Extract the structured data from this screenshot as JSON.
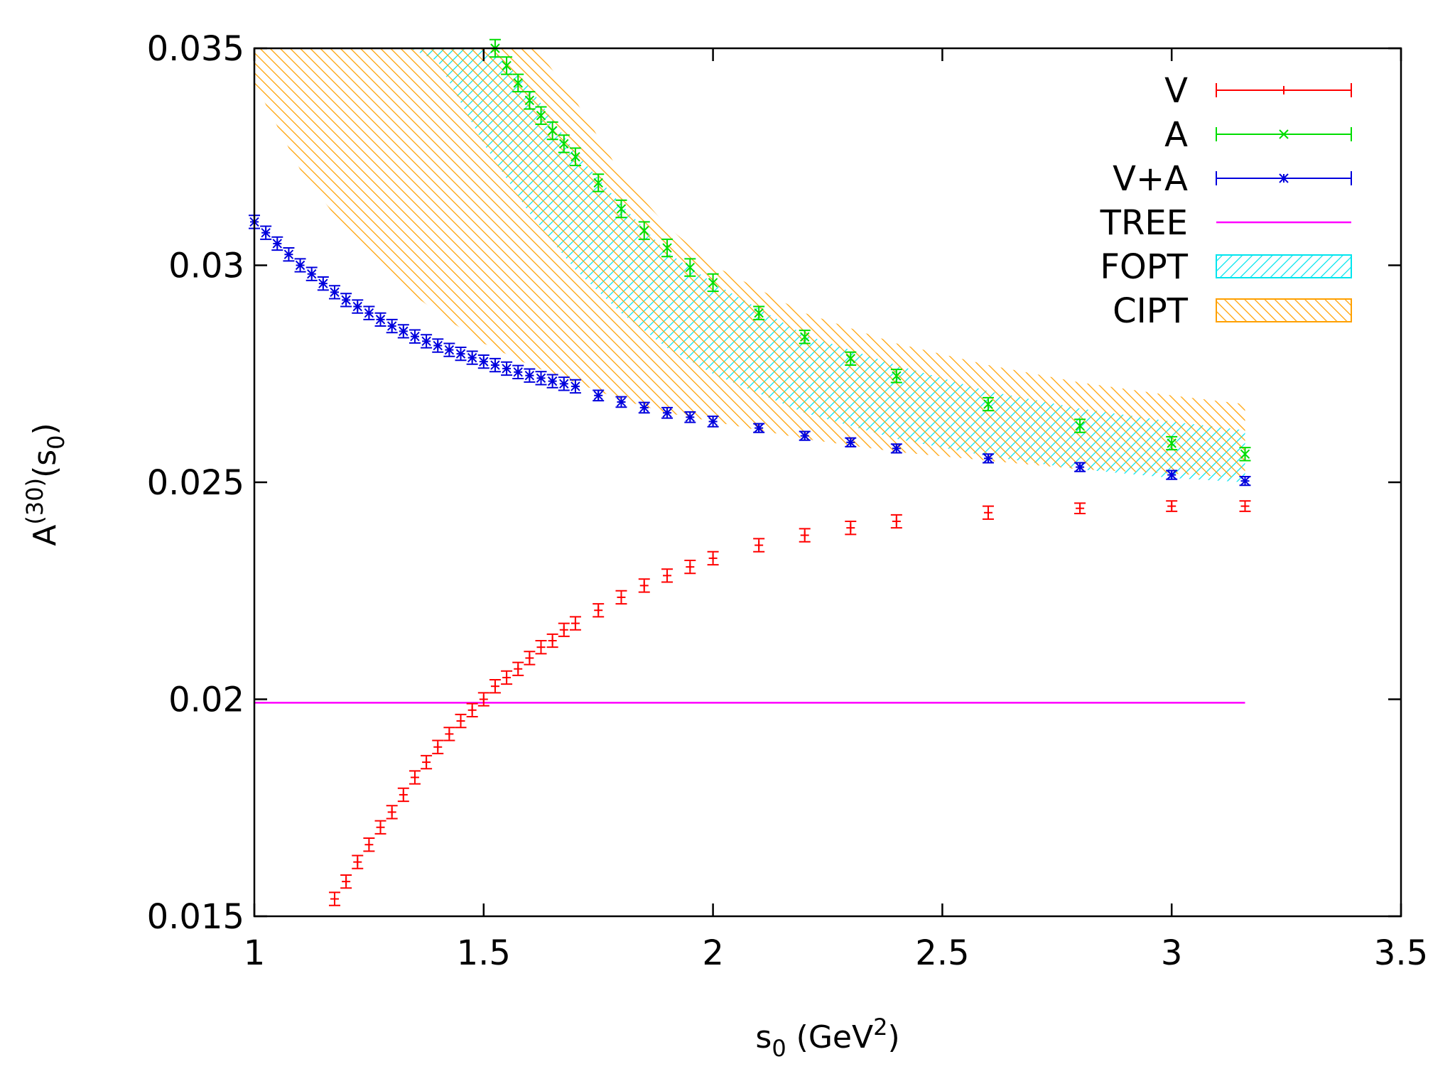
{
  "chart_data": {
    "type": "scatter",
    "xlabel": {
      "base": "s",
      "sub": "0",
      "mid": " (GeV",
      "sup": "2",
      "tail": ")"
    },
    "ylabel": {
      "base": "A",
      "sup": "(30)",
      "mid": "(s",
      "sub": "0",
      "tail": ")"
    },
    "xlim": [
      1,
      3.5
    ],
    "ylim": [
      0.015,
      0.035
    ],
    "xticks": [
      {
        "value": 1,
        "label": "1"
      },
      {
        "value": 1.5,
        "label": "1.5"
      },
      {
        "value": 2,
        "label": "2"
      },
      {
        "value": 2.5,
        "label": "2.5"
      },
      {
        "value": 3,
        "label": "3"
      },
      {
        "value": 3.5,
        "label": "3.5"
      }
    ],
    "yticks": [
      {
        "value": 0.015,
        "label": "0.015"
      },
      {
        "value": 0.02,
        "label": "0.02"
      },
      {
        "value": 0.025,
        "label": "0.025"
      },
      {
        "value": 0.03,
        "label": "0.03"
      },
      {
        "value": 0.035,
        "label": "0.035"
      }
    ],
    "legend_position": "top-right",
    "series": [
      {
        "name": "V",
        "color": "#ff0000",
        "marker": "plus",
        "points": [
          [
            1.175,
            0.0154,
            0.00015
          ],
          [
            1.2,
            0.0158,
            0.00015
          ],
          [
            1.225,
            0.01625,
            0.00015
          ],
          [
            1.25,
            0.01665,
            0.00015
          ],
          [
            1.275,
            0.01705,
            0.00015
          ],
          [
            1.3,
            0.0174,
            0.00015
          ],
          [
            1.325,
            0.0178,
            0.00015
          ],
          [
            1.35,
            0.0182,
            0.00015
          ],
          [
            1.375,
            0.01855,
            0.00015
          ],
          [
            1.4,
            0.0189,
            0.00015
          ],
          [
            1.425,
            0.0192,
            0.00015
          ],
          [
            1.45,
            0.0195,
            0.00015
          ],
          [
            1.475,
            0.01975,
            0.00015
          ],
          [
            1.5,
            0.02,
            0.00015
          ],
          [
            1.525,
            0.0203,
            0.00015
          ],
          [
            1.55,
            0.0205,
            0.00015
          ],
          [
            1.575,
            0.0207,
            0.00015
          ],
          [
            1.6,
            0.02095,
            0.00015
          ],
          [
            1.625,
            0.0212,
            0.00015
          ],
          [
            1.65,
            0.02135,
            0.00015
          ],
          [
            1.675,
            0.0216,
            0.00015
          ],
          [
            1.7,
            0.02175,
            0.00015
          ],
          [
            1.75,
            0.02205,
            0.00015
          ],
          [
            1.8,
            0.02235,
            0.00015
          ],
          [
            1.85,
            0.02262,
            0.00015
          ],
          [
            1.9,
            0.02285,
            0.00015
          ],
          [
            1.95,
            0.02305,
            0.00015
          ],
          [
            2.0,
            0.02325,
            0.00015
          ],
          [
            2.1,
            0.02355,
            0.00015
          ],
          [
            2.2,
            0.02378,
            0.00015
          ],
          [
            2.3,
            0.02395,
            0.00015
          ],
          [
            2.4,
            0.0241,
            0.00015
          ],
          [
            2.6,
            0.0243,
            0.00015
          ],
          [
            2.8,
            0.0244,
            0.00012
          ],
          [
            3.0,
            0.02445,
            0.00012
          ],
          [
            3.16,
            0.02445,
            0.00012
          ]
        ]
      },
      {
        "name": "A",
        "color": "#00dd00",
        "marker": "x",
        "points": [
          [
            1.525,
            0.035,
            0.0002
          ],
          [
            1.55,
            0.0346,
            0.0002
          ],
          [
            1.575,
            0.0342,
            0.0002
          ],
          [
            1.6,
            0.0338,
            0.0002
          ],
          [
            1.625,
            0.03345,
            0.0002
          ],
          [
            1.65,
            0.0331,
            0.0002
          ],
          [
            1.675,
            0.0328,
            0.0002
          ],
          [
            1.7,
            0.0325,
            0.0002
          ],
          [
            1.75,
            0.0319,
            0.0002
          ],
          [
            1.8,
            0.0313,
            0.0002
          ],
          [
            1.85,
            0.0308,
            0.0002
          ],
          [
            1.9,
            0.0304,
            0.0002
          ],
          [
            1.95,
            0.02995,
            0.0002
          ],
          [
            2.0,
            0.0296,
            0.0002
          ],
          [
            2.1,
            0.0289,
            0.00015
          ],
          [
            2.2,
            0.02835,
            0.00015
          ],
          [
            2.3,
            0.02785,
            0.00015
          ],
          [
            2.4,
            0.02745,
            0.00015
          ],
          [
            2.6,
            0.0268,
            0.00015
          ],
          [
            2.8,
            0.0263,
            0.00015
          ],
          [
            3.0,
            0.0259,
            0.00015
          ],
          [
            3.16,
            0.02565,
            0.00015
          ]
        ]
      },
      {
        "name": "V+A",
        "color": "#0000dd",
        "marker": "star",
        "points": [
          [
            1.0,
            0.031,
            0.00015
          ],
          [
            1.025,
            0.03075,
            0.00015
          ],
          [
            1.05,
            0.0305,
            0.00015
          ],
          [
            1.075,
            0.03025,
            0.00015
          ],
          [
            1.1,
            0.03,
            0.00015
          ],
          [
            1.125,
            0.0298,
            0.00015
          ],
          [
            1.15,
            0.02958,
            0.00015
          ],
          [
            1.175,
            0.02938,
            0.00015
          ],
          [
            1.2,
            0.0292,
            0.00015
          ],
          [
            1.225,
            0.02905,
            0.00015
          ],
          [
            1.25,
            0.0289,
            0.00015
          ],
          [
            1.275,
            0.02875,
            0.00015
          ],
          [
            1.3,
            0.0286,
            0.00015
          ],
          [
            1.325,
            0.02848,
            0.00015
          ],
          [
            1.35,
            0.02836,
            0.00015
          ],
          [
            1.375,
            0.02825,
            0.00015
          ],
          [
            1.4,
            0.02815,
            0.00015
          ],
          [
            1.425,
            0.02805,
            0.00015
          ],
          [
            1.45,
            0.02796,
            0.00015
          ],
          [
            1.475,
            0.02787,
            0.00015
          ],
          [
            1.5,
            0.02778,
            0.00015
          ],
          [
            1.525,
            0.0277,
            0.00015
          ],
          [
            1.55,
            0.02762,
            0.00015
          ],
          [
            1.575,
            0.02754,
            0.00015
          ],
          [
            1.6,
            0.02746,
            0.00015
          ],
          [
            1.625,
            0.0274,
            0.00015
          ],
          [
            1.65,
            0.02733,
            0.00015
          ],
          [
            1.675,
            0.02727,
            0.00015
          ],
          [
            1.7,
            0.02721,
            0.00015
          ],
          [
            1.75,
            0.027,
            0.00012
          ],
          [
            1.8,
            0.02685,
            0.00012
          ],
          [
            1.85,
            0.02672,
            0.00012
          ],
          [
            1.9,
            0.0266,
            0.00012
          ],
          [
            1.95,
            0.0265,
            0.00012
          ],
          [
            2.0,
            0.0264,
            0.00012
          ],
          [
            2.1,
            0.02625,
            0.0001
          ],
          [
            2.2,
            0.02607,
            0.0001
          ],
          [
            2.3,
            0.02592,
            0.0001
          ],
          [
            2.4,
            0.02578,
            0.0001
          ],
          [
            2.6,
            0.02555,
            0.0001
          ],
          [
            2.8,
            0.02535,
            0.0001
          ],
          [
            3.0,
            0.02517,
            0.0001
          ],
          [
            3.16,
            0.02503,
            0.0001
          ]
        ]
      }
    ],
    "lines": [
      {
        "name": "TREE",
        "color": "#ff00ff",
        "x": [
          1.0,
          3.16
        ],
        "y": [
          0.01992,
          0.01992
        ]
      }
    ],
    "bands": [
      {
        "name": "FOPT",
        "color": "#00e5ee",
        "pattern": "hatch",
        "x": [
          1.0,
          1.1,
          1.2,
          1.3,
          1.4,
          1.5,
          1.6,
          1.7,
          1.8,
          1.9,
          2.0,
          2.2,
          2.4,
          2.6,
          2.8,
          3.0,
          3.16
        ],
        "upper": [
          0.0352,
          0.0352,
          0.0352,
          0.0352,
          0.0352,
          0.0352,
          0.0341,
          0.0326,
          0.0314,
          0.0303,
          0.0296,
          0.0284,
          0.0277,
          0.0271,
          0.0267,
          0.0264,
          0.0262
        ],
        "lower": [
          0.0352,
          0.0352,
          0.0352,
          0.0352,
          0.0347,
          0.0328,
          0.0312,
          0.0299,
          0.0289,
          0.0281,
          0.0275,
          0.0266,
          0.026,
          0.0256,
          0.0253,
          0.0251,
          0.025
        ]
      },
      {
        "name": "CIPT",
        "color": "#ffa000",
        "pattern": "hatch",
        "x": [
          1.0,
          1.1,
          1.2,
          1.3,
          1.4,
          1.5,
          1.6,
          1.7,
          1.8,
          1.9,
          2.0,
          2.2,
          2.4,
          2.6,
          2.8,
          3.0,
          3.16
        ],
        "upper": [
          0.0352,
          0.0352,
          0.0352,
          0.0352,
          0.0352,
          0.0352,
          0.0352,
          0.0338,
          0.0321,
          0.0309,
          0.03,
          0.0289,
          0.0282,
          0.0277,
          0.0273,
          0.027,
          0.0268
        ],
        "lower": [
          0.0342,
          0.0322,
          0.0308,
          0.0297,
          0.0289,
          0.0282,
          0.0277,
          0.0273,
          0.0269,
          0.0266,
          0.0264,
          0.026,
          0.0257,
          0.0255,
          0.0253,
          0.0252,
          0.0251
        ]
      }
    ]
  }
}
